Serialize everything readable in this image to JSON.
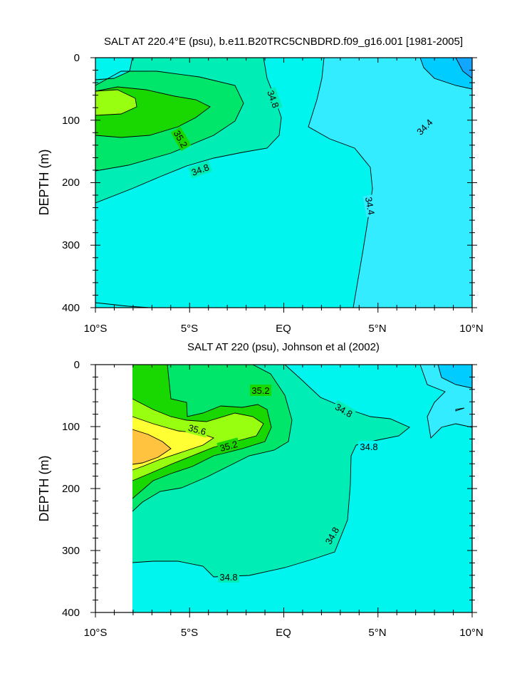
{
  "chart_data": [
    {
      "type": "contour",
      "title": "SALT AT 220.4°E (psu), b.e11.B20TRC5CNBDRD.f09_g16.001 [1981-2005]",
      "xlabel": "",
      "ylabel": "DEPTH (m)",
      "xlim": [
        -10,
        10
      ],
      "ylim": [
        0,
        400
      ],
      "y_inverted": true,
      "x_tick_labels": [
        "10°S",
        "5°S",
        "EQ",
        "5°N",
        "10°N"
      ],
      "y_tick_labels": [
        "0",
        "100",
        "200",
        "300",
        "400"
      ],
      "contour_interval_psu": 0.2,
      "color_scale": {
        "34.2": "#00ccff",
        "34.4": "#33ecff",
        "34.6": "#00f5ee",
        "34.8": "#00eeb5",
        "35.0": "#00e66a",
        "35.2": "#19d700",
        "35.4": "#99ff11",
        "35.6": "#ffff33",
        "35.8": "#ffc340"
      },
      "contour_labels": [
        {
          "x": -0.1,
          "y": 65,
          "value": "34.8"
        },
        {
          "x": 8.2,
          "y": 108,
          "value": "34.4"
        },
        {
          "x": -5.3,
          "y": 130,
          "value": "35.2"
        },
        {
          "x": -5.1,
          "y": 175,
          "value": "34.8"
        },
        {
          "x": 5.0,
          "y": 238,
          "value": "34.4"
        }
      ]
    },
    {
      "type": "contour",
      "title": "SALT AT 220 (psu), Johnson et al (2002)",
      "xlabel": "",
      "ylabel": "DEPTH (m)",
      "xlim": [
        -10,
        10
      ],
      "ylim": [
        0,
        400
      ],
      "y_inverted": true,
      "x_tick_labels": [
        "10°S",
        "5°S",
        "EQ",
        "5°N",
        "10°N"
      ],
      "y_tick_labels": [
        "0",
        "100",
        "200",
        "300",
        "400"
      ],
      "data_x_range": [
        -8,
        10
      ],
      "contour_interval_psu": 0.2,
      "color_scale": {
        "34.2": "#00ccff",
        "34.4": "#33ecff",
        "34.6": "#00f5ee",
        "34.8": "#00eeb5",
        "35.0": "#00e66a",
        "35.2": "#19d700",
        "35.4": "#99ff11",
        "35.6": "#ffff33",
        "35.8": "#ffc340"
      },
      "contour_labels": [
        {
          "x": -1.1,
          "y": 40,
          "value": "35.2"
        },
        {
          "x": 3.7,
          "y": 78,
          "value": "34.8"
        },
        {
          "x": -4.6,
          "y": 112,
          "value": "35.6"
        },
        {
          "x": -2.9,
          "y": 140,
          "value": "35.2"
        },
        {
          "x": 4.9,
          "y": 142,
          "value": "34.8"
        },
        {
          "x": 3.1,
          "y": 292,
          "value": "34.8"
        },
        {
          "x": -3.2,
          "y": 350,
          "value": "34.8"
        }
      ]
    }
  ]
}
